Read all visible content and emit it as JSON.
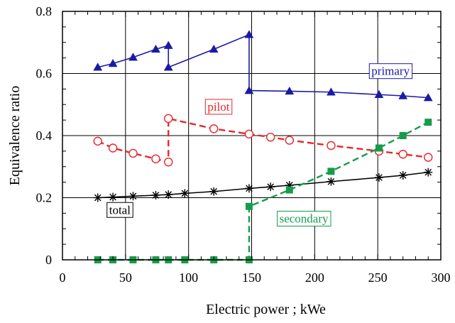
{
  "chart_data": {
    "type": "line",
    "xlabel": "Electric power ; kWe",
    "ylabel": "Equivalence ratio",
    "xlim": [
      0,
      300
    ],
    "ylim": [
      0,
      0.8
    ],
    "x_ticks": [
      "0",
      "50",
      "100",
      "150",
      "200",
      "250",
      "300"
    ],
    "y_ticks": [
      "0",
      "0.2",
      "0.4",
      "0.6",
      "0.8"
    ],
    "grid": true,
    "series": [
      {
        "name": "primary",
        "color": "#1a1aa6",
        "marker": "filled-triangle",
        "line": "solid",
        "points": [
          [
            28,
            0.62
          ],
          [
            40,
            0.632
          ],
          [
            56,
            0.652
          ],
          [
            74,
            0.678
          ],
          [
            84,
            0.69
          ],
          [
            84,
            0.62
          ],
          [
            120,
            0.678
          ],
          [
            148,
            0.725
          ],
          [
            148,
            0.545
          ],
          [
            180,
            0.543
          ],
          [
            213,
            0.54
          ],
          [
            251,
            0.532
          ],
          [
            270,
            0.528
          ],
          [
            290,
            0.522
          ]
        ]
      },
      {
        "name": "pilot",
        "color": "#e8262d",
        "marker": "open-circle",
        "line": "dashed",
        "points": [
          [
            28,
            0.382
          ],
          [
            40,
            0.36
          ],
          [
            56,
            0.343
          ],
          [
            74,
            0.325
          ],
          [
            84,
            0.315
          ],
          [
            84,
            0.455
          ],
          [
            120,
            0.422
          ],
          [
            148,
            0.405
          ],
          [
            165,
            0.395
          ],
          [
            180,
            0.385
          ],
          [
            213,
            0.368
          ],
          [
            251,
            0.35
          ],
          [
            270,
            0.34
          ],
          [
            290,
            0.33
          ]
        ]
      },
      {
        "name": "total",
        "color": "#000000",
        "marker": "asterisk",
        "line": "solid",
        "points": [
          [
            28,
            0.2
          ],
          [
            40,
            0.202
          ],
          [
            56,
            0.205
          ],
          [
            74,
            0.208
          ],
          [
            84,
            0.21
          ],
          [
            97,
            0.214
          ],
          [
            120,
            0.22
          ],
          [
            148,
            0.23
          ],
          [
            165,
            0.235
          ],
          [
            180,
            0.24
          ],
          [
            213,
            0.252
          ],
          [
            251,
            0.265
          ],
          [
            270,
            0.272
          ],
          [
            290,
            0.282
          ]
        ]
      },
      {
        "name": "secondary",
        "color": "#159c4b",
        "marker": "filled-square",
        "line": "dashed",
        "points": [
          [
            28,
            0
          ],
          [
            40,
            0
          ],
          [
            56,
            0
          ],
          [
            74,
            0
          ],
          [
            84,
            0
          ],
          [
            97,
            0
          ],
          [
            120,
            0
          ],
          [
            148,
            0
          ],
          [
            148,
            0.172
          ],
          [
            180,
            0.225
          ],
          [
            213,
            0.285
          ],
          [
            251,
            0.36
          ],
          [
            270,
            0.4
          ],
          [
            290,
            0.443
          ]
        ]
      }
    ],
    "labels": [
      {
        "text": "primary",
        "series": "primary",
        "x": 245,
        "y": 0.595
      },
      {
        "text": "pilot",
        "series": "pilot",
        "x": 115,
        "y": 0.48
      },
      {
        "text": "total",
        "series": "total",
        "x": 37,
        "y": 0.148
      },
      {
        "text": "secondary",
        "series": "secondary",
        "x": 172,
        "y": 0.12
      }
    ]
  }
}
